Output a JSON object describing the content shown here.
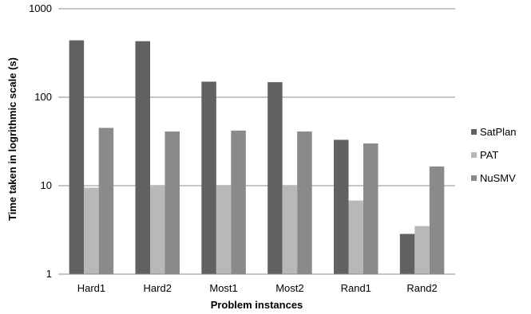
{
  "chart_data": {
    "type": "bar",
    "categories": [
      "Hard1",
      "Hard2",
      "Most1",
      "Most2",
      "Rand1",
      "Rand2"
    ],
    "series": [
      {
        "name": "SatPlan",
        "color": "#616161",
        "values": [
          440,
          430,
          150,
          148,
          33,
          2.85
        ]
      },
      {
        "name": "PAT",
        "color": "#b8b8b8",
        "values": [
          9.5,
          10,
          10,
          10,
          6.8,
          3.5
        ]
      },
      {
        "name": "NuSMV",
        "color": "#8a8a8a",
        "values": [
          45,
          41,
          42,
          41,
          30,
          16.5
        ]
      }
    ],
    "title": "",
    "xlabel": "Problem instances",
    "ylabel": "Time taken in logrithmic scale (s)",
    "yscale": "log",
    "ylim": [
      1,
      1000
    ],
    "yticks": [
      1,
      10,
      100,
      1000
    ],
    "ytick_labels": [
      "1",
      "10",
      "100",
      "1000"
    ],
    "grid": "horizontal",
    "legend_position": "right"
  }
}
